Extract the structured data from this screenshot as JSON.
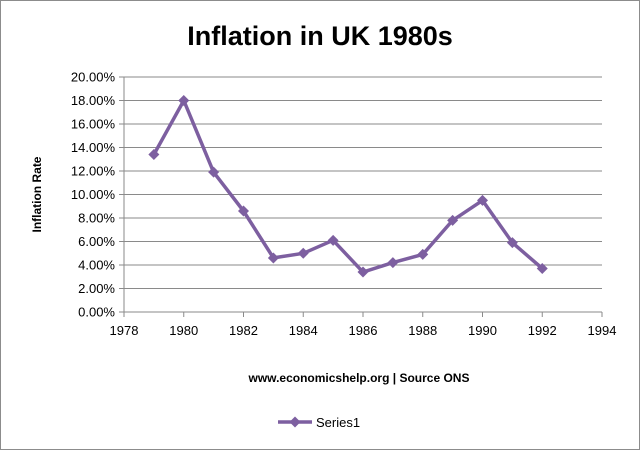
{
  "chart_data": {
    "type": "line",
    "title": "Inflation in UK 1980s",
    "xlabel": "www.economicshelp.org | Source ONS",
    "ylabel": "Inflation Rate",
    "xlim": [
      1978,
      1994
    ],
    "ylim": [
      0,
      0.2
    ],
    "x_ticks": [
      1978,
      1980,
      1982,
      1984,
      1986,
      1988,
      1990,
      1992,
      1994
    ],
    "x_tick_labels": [
      "1978",
      "1980",
      "1982",
      "1984",
      "1986",
      "1988",
      "1990",
      "1992",
      "1994"
    ],
    "y_ticks": [
      0,
      0.02,
      0.04,
      0.06,
      0.08,
      0.1,
      0.12,
      0.14,
      0.16,
      0.18,
      0.2
    ],
    "y_tick_labels": [
      "0.00%",
      "2.00%",
      "4.00%",
      "6.00%",
      "8.00%",
      "10.00%",
      "12.00%",
      "14.00%",
      "16.00%",
      "18.00%",
      "20.00%"
    ],
    "grid": true,
    "legend_position": "bottom",
    "series": [
      {
        "name": "Series1",
        "color": "#7d5fa0",
        "marker": "diamond",
        "x": [
          1979,
          1980,
          1981,
          1982,
          1983,
          1984,
          1985,
          1986,
          1987,
          1988,
          1989,
          1990,
          1991,
          1992
        ],
        "values": [
          0.134,
          0.18,
          0.119,
          0.086,
          0.046,
          0.05,
          0.061,
          0.034,
          0.042,
          0.049,
          0.078,
          0.095,
          0.059,
          0.037
        ]
      }
    ]
  }
}
